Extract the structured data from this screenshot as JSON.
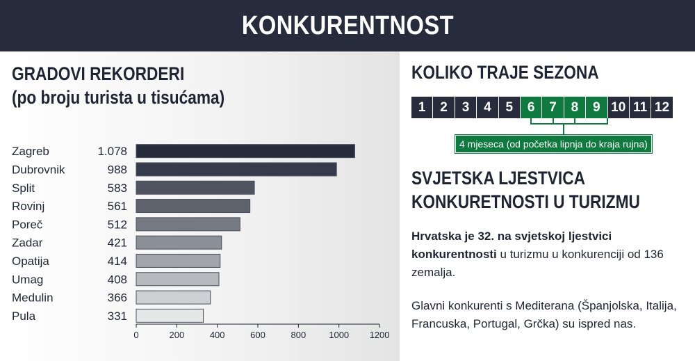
{
  "header": {
    "title": "KONKURENTNOST"
  },
  "left": {
    "title_line1": "GRADOVI REKORDERI",
    "title_line2": "(po broju turista u tisućama)"
  },
  "chart_data": {
    "type": "bar",
    "orientation": "horizontal",
    "categories": [
      "Zagreb",
      "Dubrovnik",
      "Split",
      "Rovinj",
      "Poreč",
      "Zadar",
      "Opatija",
      "Umag",
      "Medulin",
      "Pula"
    ],
    "value_labels": [
      "1.078",
      "988",
      "583",
      "561",
      "512",
      "421",
      "414",
      "408",
      "366",
      "331"
    ],
    "values": [
      1078,
      988,
      583,
      561,
      512,
      421,
      414,
      408,
      366,
      331
    ],
    "xlim": [
      0,
      1200
    ],
    "x_ticks": [
      0,
      200,
      400,
      600,
      800,
      1000,
      1200
    ],
    "bar_colors": [
      "#272c3c",
      "#363b4b",
      "#4f5460",
      "#5d626d",
      "#767a83",
      "#8b8f96",
      "#a2a5ab",
      "#b7b9be",
      "#cdcfd2",
      "#e6e7e9"
    ]
  },
  "season": {
    "title": "KOLIKO TRAJE SEZONA",
    "months": [
      "1",
      "2",
      "3",
      "4",
      "5",
      "6",
      "7",
      "8",
      "9",
      "10",
      "11",
      "12"
    ],
    "highlighted_months": [
      "6",
      "7",
      "8",
      "9"
    ],
    "label": "4 mjeseca (od početka lipnja do kraja rujna)",
    "highlight_color": "#0e7a3e"
  },
  "ranking": {
    "title_line1": "SVJETSKA LJESTVICA",
    "title_line2": "KONKURETNOSTI U TURIZMU",
    "p1_bold": "Hrvatska je 32. na svjetskoj ljestvici konkurentnosti",
    "p1_rest": " u turizmu u konkurenciji od 136 zemalja.",
    "p2": "Glavni konkurenti s Mediterana (Španjolska, Italija, Francuska, Portugal, Grčka) su ispred nas."
  }
}
